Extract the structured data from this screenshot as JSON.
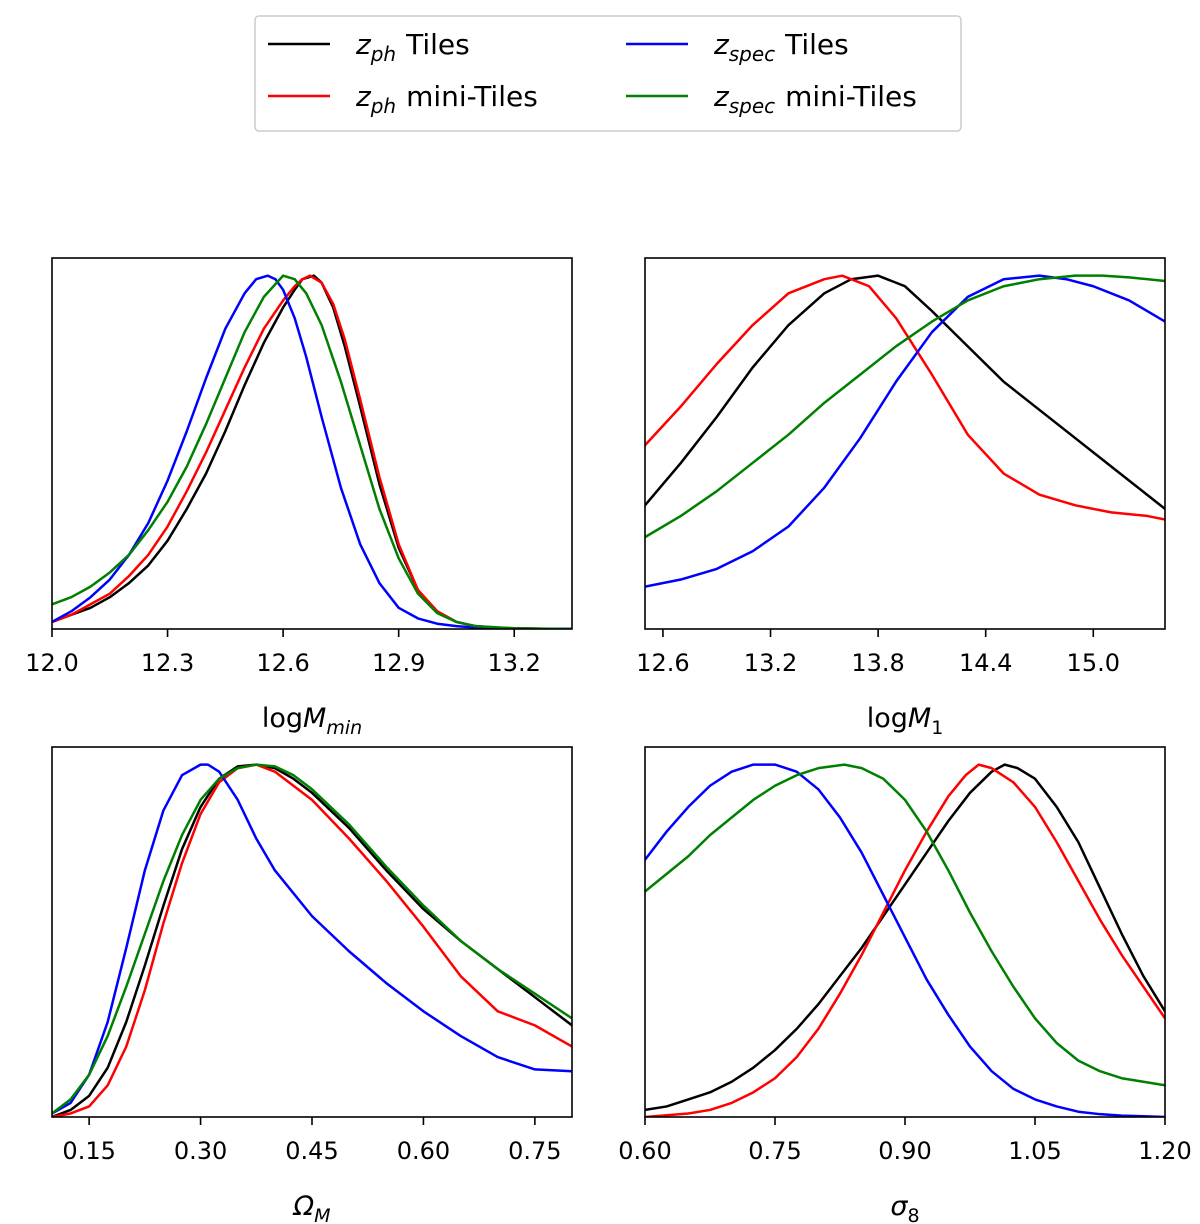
{
  "legend": {
    "entries": [
      {
        "key": "zph_tiles",
        "sym": "z",
        "sub": "ph",
        "text": "Tiles",
        "color": "#000000"
      },
      {
        "key": "zph_mini",
        "sym": "z",
        "sub": "ph",
        "text": "mini-Tiles",
        "color": "#ff0000"
      },
      {
        "key": "zspec_tiles",
        "sym": "z",
        "sub": "spec",
        "text": "Tiles",
        "color": "#0000ff"
      },
      {
        "key": "zspec_mini",
        "sym": "z",
        "sub": "spec",
        "text": "mini-Tiles",
        "color": "#008000"
      }
    ]
  },
  "chart_data": [
    {
      "type": "line",
      "id": "logMmin",
      "xlabel_main": "log",
      "xlabel_sym": "M",
      "xlabel_sub": "min",
      "xlim": [
        12.0,
        13.35
      ],
      "ylim": [
        0,
        1.05
      ],
      "xticks": [
        12.0,
        12.3,
        12.6,
        12.9,
        13.2
      ],
      "xtick_labels": [
        "12.0",
        "12.3",
        "12.6",
        "12.9",
        "13.2"
      ],
      "series": [
        {
          "name": "z_ph Tiles",
          "color": "#000000",
          "x": [
            12.0,
            12.05,
            12.1,
            12.15,
            12.2,
            12.25,
            12.3,
            12.35,
            12.4,
            12.45,
            12.5,
            12.55,
            12.6,
            12.63,
            12.65,
            12.68,
            12.7,
            12.73,
            12.76,
            12.8,
            12.85,
            12.9,
            12.95,
            13.0,
            13.05,
            13.1,
            13.15,
            13.2,
            13.3,
            13.35
          ],
          "y": [
            0.02,
            0.04,
            0.06,
            0.09,
            0.13,
            0.18,
            0.25,
            0.34,
            0.44,
            0.56,
            0.69,
            0.81,
            0.91,
            0.96,
            0.99,
            1.0,
            0.98,
            0.91,
            0.8,
            0.63,
            0.41,
            0.23,
            0.11,
            0.05,
            0.02,
            0.008,
            0.004,
            0.002,
            0.0,
            0.0
          ]
        },
        {
          "name": "z_ph mini-Tiles",
          "color": "#ff0000",
          "x": [
            12.0,
            12.05,
            12.1,
            12.15,
            12.2,
            12.25,
            12.3,
            12.35,
            12.4,
            12.45,
            12.5,
            12.55,
            12.6,
            12.63,
            12.65,
            12.67,
            12.7,
            12.73,
            12.76,
            12.8,
            12.85,
            12.9,
            12.95,
            13.0,
            13.05,
            13.1,
            13.15,
            13.2,
            13.3,
            13.35
          ],
          "y": [
            0.02,
            0.04,
            0.07,
            0.1,
            0.15,
            0.21,
            0.29,
            0.39,
            0.5,
            0.62,
            0.74,
            0.85,
            0.93,
            0.97,
            0.99,
            1.0,
            0.98,
            0.92,
            0.82,
            0.65,
            0.43,
            0.24,
            0.11,
            0.05,
            0.02,
            0.008,
            0.004,
            0.002,
            0.0,
            0.0
          ]
        },
        {
          "name": "z_spec Tiles",
          "color": "#0000ff",
          "x": [
            12.0,
            12.05,
            12.1,
            12.15,
            12.2,
            12.25,
            12.3,
            12.35,
            12.4,
            12.45,
            12.5,
            12.53,
            12.56,
            12.58,
            12.6,
            12.63,
            12.66,
            12.7,
            12.75,
            12.8,
            12.85,
            12.9,
            12.95,
            13.0,
            13.05,
            13.1,
            13.2,
            13.35
          ],
          "y": [
            0.02,
            0.05,
            0.09,
            0.14,
            0.21,
            0.3,
            0.42,
            0.56,
            0.71,
            0.85,
            0.95,
            0.99,
            1.0,
            0.99,
            0.96,
            0.88,
            0.77,
            0.6,
            0.4,
            0.24,
            0.13,
            0.06,
            0.03,
            0.015,
            0.008,
            0.004,
            0.001,
            0.0
          ]
        },
        {
          "name": "z_spec mini-Tiles",
          "color": "#008000",
          "x": [
            12.0,
            12.05,
            12.1,
            12.15,
            12.2,
            12.25,
            12.3,
            12.35,
            12.4,
            12.45,
            12.5,
            12.55,
            12.6,
            12.63,
            12.66,
            12.7,
            12.75,
            12.8,
            12.85,
            12.9,
            12.95,
            13.0,
            13.05,
            13.1,
            13.2,
            13.35
          ],
          "y": [
            0.07,
            0.09,
            0.12,
            0.16,
            0.21,
            0.28,
            0.36,
            0.46,
            0.58,
            0.71,
            0.84,
            0.94,
            1.0,
            0.99,
            0.95,
            0.86,
            0.7,
            0.52,
            0.34,
            0.2,
            0.1,
            0.045,
            0.02,
            0.008,
            0.002,
            0.0
          ]
        }
      ]
    },
    {
      "type": "line",
      "id": "logM1",
      "xlabel_main": "log",
      "xlabel_sym": "M",
      "xlabel_sub": "1",
      "xlim": [
        12.5,
        15.4
      ],
      "ylim": [
        0,
        1.05
      ],
      "xticks": [
        12.6,
        13.2,
        13.8,
        14.4,
        15.0
      ],
      "xtick_labels": [
        "12.6",
        "13.2",
        "13.8",
        "14.4",
        "15.0"
      ],
      "series": [
        {
          "name": "z_ph Tiles",
          "color": "#000000",
          "x": [
            12.5,
            12.7,
            12.9,
            13.1,
            13.3,
            13.5,
            13.65,
            13.8,
            13.95,
            14.1,
            14.3,
            14.5,
            14.7,
            14.9,
            15.1,
            15.3,
            15.4
          ],
          "y": [
            0.35,
            0.47,
            0.6,
            0.74,
            0.86,
            0.95,
            0.99,
            1.0,
            0.97,
            0.9,
            0.8,
            0.7,
            0.62,
            0.54,
            0.46,
            0.38,
            0.34
          ]
        },
        {
          "name": "z_ph mini-Tiles",
          "color": "#ff0000",
          "x": [
            12.5,
            12.7,
            12.9,
            13.1,
            13.3,
            13.5,
            13.6,
            13.75,
            13.9,
            14.1,
            14.3,
            14.5,
            14.7,
            14.9,
            15.1,
            15.3,
            15.4
          ],
          "y": [
            0.52,
            0.63,
            0.75,
            0.86,
            0.95,
            0.99,
            1.0,
            0.97,
            0.88,
            0.72,
            0.55,
            0.44,
            0.38,
            0.35,
            0.33,
            0.32,
            0.31
          ]
        },
        {
          "name": "z_spec Tiles",
          "color": "#0000ff",
          "x": [
            12.5,
            12.7,
            12.9,
            13.1,
            13.3,
            13.5,
            13.7,
            13.9,
            14.1,
            14.3,
            14.5,
            14.7,
            14.85,
            15.0,
            15.2,
            15.4
          ],
          "y": [
            0.12,
            0.14,
            0.17,
            0.22,
            0.29,
            0.4,
            0.54,
            0.7,
            0.84,
            0.94,
            0.99,
            1.0,
            0.99,
            0.97,
            0.93,
            0.87
          ]
        },
        {
          "name": "z_spec mini-Tiles",
          "color": "#008000",
          "x": [
            12.5,
            12.7,
            12.9,
            13.1,
            13.3,
            13.5,
            13.7,
            13.9,
            14.1,
            14.3,
            14.5,
            14.7,
            14.9,
            15.05,
            15.2,
            15.4
          ],
          "y": [
            0.26,
            0.32,
            0.39,
            0.47,
            0.55,
            0.64,
            0.72,
            0.8,
            0.87,
            0.93,
            0.97,
            0.99,
            1.0,
            1.0,
            0.995,
            0.985
          ]
        }
      ]
    },
    {
      "type": "line",
      "id": "OmegaM",
      "xlabel_main": "",
      "xlabel_sym": "Ω",
      "xlabel_sub": "M",
      "xlim": [
        0.1,
        0.8
      ],
      "ylim": [
        0,
        1.05
      ],
      "xticks": [
        0.15,
        0.3,
        0.45,
        0.6,
        0.75
      ],
      "xtick_labels": [
        "0.15",
        "0.30",
        "0.45",
        "0.60",
        "0.75"
      ],
      "series": [
        {
          "name": "z_ph Tiles",
          "color": "#000000",
          "x": [
            0.1,
            0.125,
            0.15,
            0.175,
            0.2,
            0.225,
            0.25,
            0.275,
            0.3,
            0.325,
            0.35,
            0.375,
            0.4,
            0.425,
            0.45,
            0.5,
            0.55,
            0.6,
            0.65,
            0.7,
            0.75,
            0.8
          ],
          "y": [
            0.0,
            0.02,
            0.06,
            0.14,
            0.27,
            0.43,
            0.6,
            0.76,
            0.88,
            0.96,
            0.995,
            1.0,
            0.99,
            0.96,
            0.92,
            0.82,
            0.7,
            0.59,
            0.5,
            0.42,
            0.34,
            0.26
          ]
        },
        {
          "name": "z_ph mini-Tiles",
          "color": "#ff0000",
          "x": [
            0.1,
            0.125,
            0.15,
            0.175,
            0.2,
            0.225,
            0.25,
            0.275,
            0.3,
            0.325,
            0.35,
            0.375,
            0.4,
            0.425,
            0.45,
            0.5,
            0.55,
            0.6,
            0.65,
            0.7,
            0.75,
            0.8
          ],
          "y": [
            0.0,
            0.01,
            0.03,
            0.09,
            0.2,
            0.36,
            0.55,
            0.72,
            0.86,
            0.95,
            0.99,
            1.0,
            0.98,
            0.94,
            0.9,
            0.79,
            0.67,
            0.54,
            0.4,
            0.3,
            0.26,
            0.2
          ]
        },
        {
          "name": "z_spec Tiles",
          "color": "#0000ff",
          "x": [
            0.1,
            0.125,
            0.15,
            0.175,
            0.2,
            0.225,
            0.25,
            0.275,
            0.3,
            0.31,
            0.325,
            0.35,
            0.375,
            0.4,
            0.45,
            0.5,
            0.55,
            0.6,
            0.65,
            0.7,
            0.75,
            0.8
          ],
          "y": [
            0.01,
            0.04,
            0.12,
            0.27,
            0.48,
            0.7,
            0.87,
            0.97,
            1.0,
            1.0,
            0.98,
            0.9,
            0.79,
            0.7,
            0.57,
            0.47,
            0.38,
            0.3,
            0.23,
            0.17,
            0.135,
            0.13
          ]
        },
        {
          "name": "z_spec mini-Tiles",
          "color": "#008000",
          "x": [
            0.1,
            0.125,
            0.15,
            0.175,
            0.2,
            0.225,
            0.25,
            0.275,
            0.3,
            0.325,
            0.35,
            0.375,
            0.4,
            0.425,
            0.45,
            0.5,
            0.55,
            0.6,
            0.65,
            0.7,
            0.75,
            0.8
          ],
          "y": [
            0.01,
            0.05,
            0.12,
            0.23,
            0.37,
            0.52,
            0.67,
            0.8,
            0.9,
            0.96,
            0.99,
            1.0,
            0.995,
            0.97,
            0.93,
            0.83,
            0.71,
            0.6,
            0.5,
            0.42,
            0.35,
            0.28
          ]
        }
      ]
    },
    {
      "type": "line",
      "id": "sigma8",
      "xlabel_main": "",
      "xlabel_sym": "σ",
      "xlabel_sub": "8",
      "xlim": [
        0.6,
        1.2
      ],
      "ylim": [
        0,
        1.05
      ],
      "xticks": [
        0.6,
        0.75,
        0.9,
        1.05,
        1.2
      ],
      "xtick_labels": [
        "0.60",
        "0.75",
        "0.90",
        "1.05",
        "1.20"
      ],
      "series": [
        {
          "name": "z_ph Tiles",
          "color": "#000000",
          "x": [
            0.6,
            0.625,
            0.65,
            0.675,
            0.7,
            0.725,
            0.75,
            0.775,
            0.8,
            0.825,
            0.85,
            0.875,
            0.9,
            0.925,
            0.95,
            0.975,
            1.0,
            1.015,
            1.03,
            1.05,
            1.075,
            1.1,
            1.125,
            1.15,
            1.175,
            1.2
          ],
          "y": [
            0.02,
            0.03,
            0.05,
            0.07,
            0.1,
            0.14,
            0.19,
            0.25,
            0.32,
            0.4,
            0.48,
            0.57,
            0.66,
            0.75,
            0.84,
            0.92,
            0.98,
            1.0,
            0.99,
            0.96,
            0.88,
            0.78,
            0.65,
            0.52,
            0.4,
            0.3
          ]
        },
        {
          "name": "z_ph mini-Tiles",
          "color": "#ff0000",
          "x": [
            0.6,
            0.625,
            0.65,
            0.675,
            0.7,
            0.725,
            0.75,
            0.775,
            0.8,
            0.825,
            0.85,
            0.875,
            0.9,
            0.925,
            0.95,
            0.97,
            0.985,
            1.0,
            1.025,
            1.05,
            1.075,
            1.1,
            1.125,
            1.15,
            1.175,
            1.2
          ],
          "y": [
            0.0,
            0.005,
            0.01,
            0.02,
            0.04,
            0.07,
            0.11,
            0.17,
            0.25,
            0.35,
            0.46,
            0.58,
            0.7,
            0.81,
            0.91,
            0.97,
            1.0,
            0.99,
            0.95,
            0.88,
            0.78,
            0.67,
            0.56,
            0.46,
            0.37,
            0.28
          ]
        },
        {
          "name": "z_spec Tiles",
          "color": "#0000ff",
          "x": [
            0.6,
            0.625,
            0.65,
            0.675,
            0.7,
            0.725,
            0.75,
            0.775,
            0.8,
            0.825,
            0.85,
            0.875,
            0.9,
            0.925,
            0.95,
            0.975,
            1.0,
            1.025,
            1.05,
            1.075,
            1.1,
            1.125,
            1.15,
            1.175,
            1.2
          ],
          "y": [
            0.73,
            0.81,
            0.88,
            0.94,
            0.98,
            1.0,
            1.0,
            0.98,
            0.93,
            0.85,
            0.75,
            0.63,
            0.51,
            0.39,
            0.29,
            0.2,
            0.13,
            0.08,
            0.05,
            0.03,
            0.015,
            0.008,
            0.004,
            0.002,
            0.0
          ]
        },
        {
          "name": "z_spec mini-Tiles",
          "color": "#008000",
          "x": [
            0.6,
            0.625,
            0.65,
            0.675,
            0.7,
            0.725,
            0.75,
            0.775,
            0.8,
            0.83,
            0.85,
            0.875,
            0.9,
            0.925,
            0.95,
            0.975,
            1.0,
            1.025,
            1.05,
            1.075,
            1.1,
            1.125,
            1.15,
            1.175,
            1.2
          ],
          "y": [
            0.64,
            0.69,
            0.74,
            0.8,
            0.85,
            0.9,
            0.94,
            0.97,
            0.99,
            1.0,
            0.99,
            0.96,
            0.9,
            0.81,
            0.7,
            0.58,
            0.47,
            0.37,
            0.28,
            0.21,
            0.16,
            0.13,
            0.11,
            0.1,
            0.09
          ]
        }
      ]
    }
  ]
}
